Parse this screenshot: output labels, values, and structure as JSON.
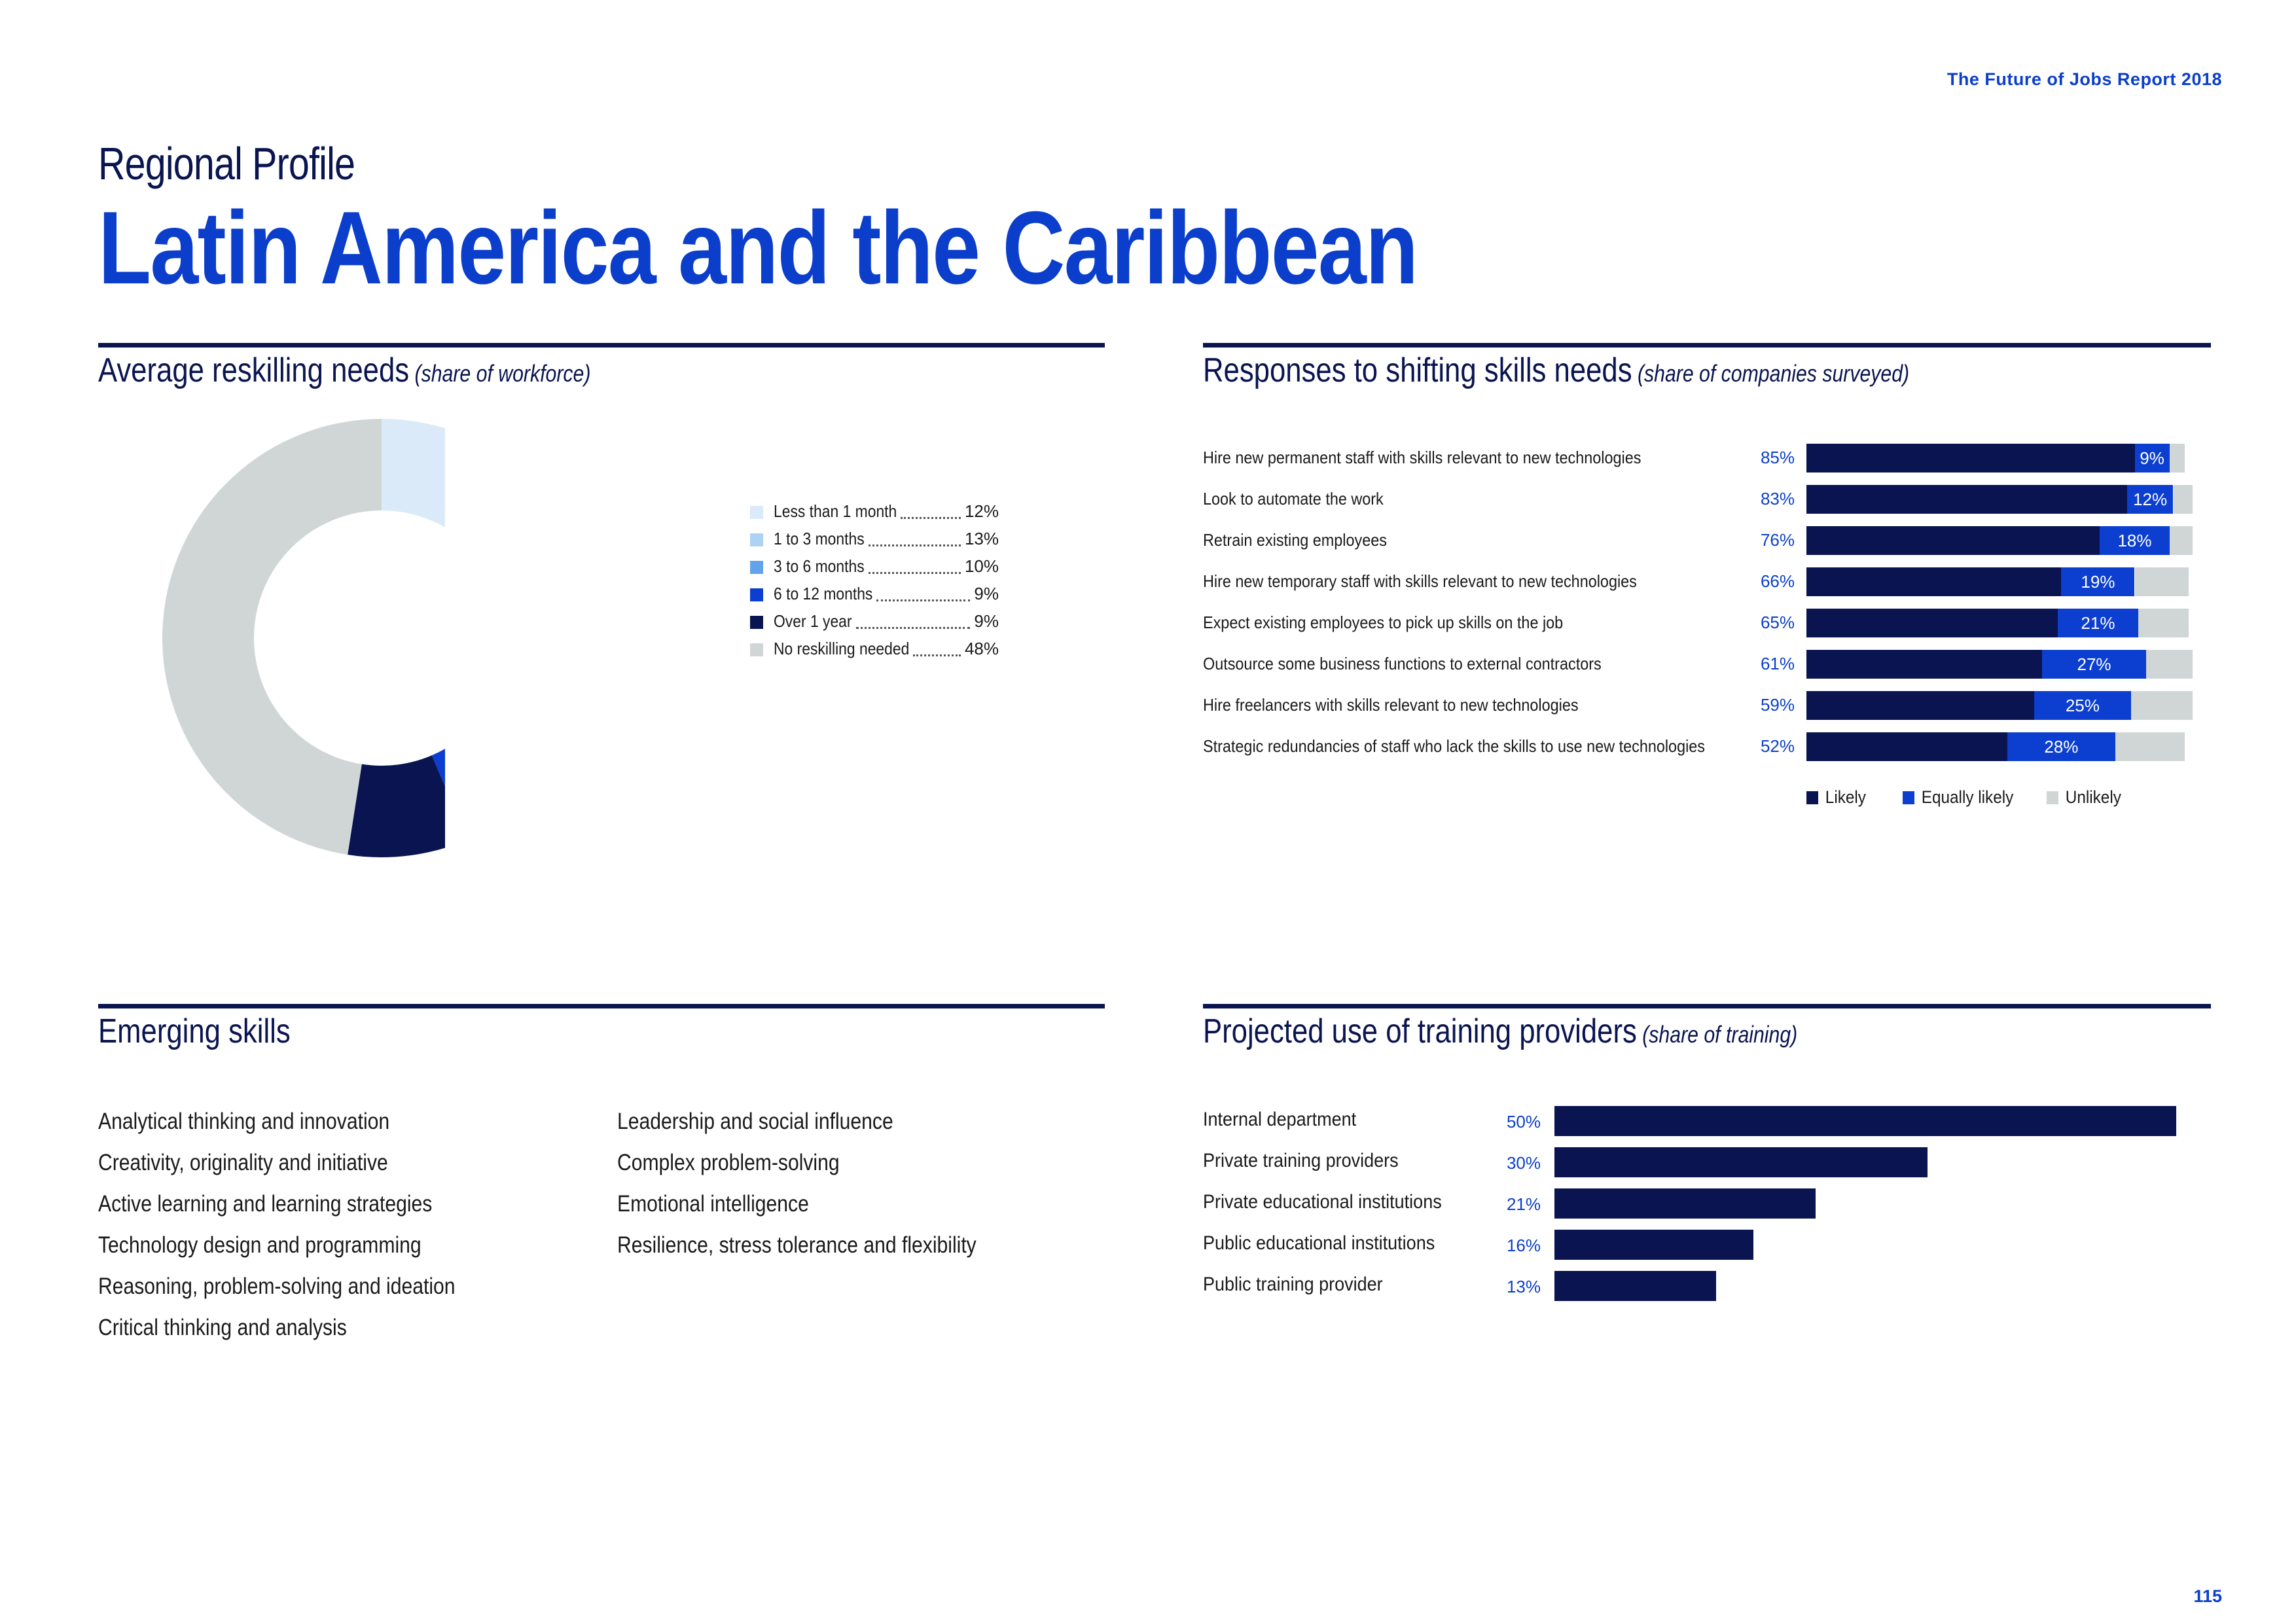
{
  "header": {
    "report_title": "The Future of Jobs Report 2018",
    "page_number": "115"
  },
  "titles": {
    "super": "Regional Profile",
    "main": "Latin America and the Caribbean"
  },
  "reskilling": {
    "title": "Average reskilling needs",
    "subtitle": "(share of workforce)",
    "legend": [
      {
        "label": "Less than 1 month",
        "value": "12%"
      },
      {
        "label": "1 to 3 months",
        "value": "13%"
      },
      {
        "label": "3 to 6 months",
        "value": "10%"
      },
      {
        "label": "6 to 12 months",
        "value": "9%"
      },
      {
        "label": "Over 1 year",
        "value": "9%"
      },
      {
        "label": "No reskilling needed",
        "value": "48%"
      }
    ]
  },
  "responses": {
    "title": "Responses to shifting skills needs",
    "subtitle": "(share of companies surveyed)",
    "rows": [
      {
        "label": "Hire new permanent staff with skills relevant to new technologies",
        "likely_label": "85%",
        "equally_label": "9%"
      },
      {
        "label": "Look to automate the work",
        "likely_label": "83%",
        "equally_label": "12%"
      },
      {
        "label": "Retrain existing employees",
        "likely_label": "76%",
        "equally_label": "18%"
      },
      {
        "label": "Hire new temporary staff with skills relevant to new technologies",
        "likely_label": "66%",
        "equally_label": "19%"
      },
      {
        "label": "Expect existing employees to pick up skills on the job",
        "likely_label": "65%",
        "equally_label": "21%"
      },
      {
        "label": "Outsource some business functions to external contractors",
        "likely_label": "61%",
        "equally_label": "27%"
      },
      {
        "label": "Hire freelancers with skills relevant to new technologies",
        "likely_label": "59%",
        "equally_label": "25%"
      },
      {
        "label": "Strategic redundancies of staff who lack the skills to use new technologies",
        "likely_label": "52%",
        "equally_label": "28%"
      }
    ],
    "legend": {
      "likely": "Likely",
      "equally": "Equally likely",
      "unlikely": "Unlikely"
    }
  },
  "emerging": {
    "title": "Emerging skills",
    "col1": [
      "Analytical thinking and innovation",
      "Creativity, originality and initiative",
      "Active learning and learning strategies",
      "Technology design and programming",
      "Reasoning, problem-solving and ideation",
      "Critical thinking and analysis"
    ],
    "col2": [
      "Leadership and social influence",
      "Complex problem-solving",
      "Emotional intelligence",
      "Resilience, stress tolerance and flexibility"
    ]
  },
  "training": {
    "title": "Projected use of training providers",
    "subtitle": "(share of training)",
    "rows": [
      {
        "label": "Internal department",
        "value_label": "50%"
      },
      {
        "label": "Private training providers",
        "value_label": "30%"
      },
      {
        "label": "Private educational institutions",
        "value_label": "21%"
      },
      {
        "label": "Public educational institutions",
        "value_label": "16%"
      },
      {
        "label": "Public training provider",
        "value_label": "13%"
      }
    ]
  },
  "colors": {
    "brand_blue": "#0b3fcb",
    "navy": "#0a1450",
    "grey": "#d0d6d6",
    "donut": [
      "#dbeaf8",
      "#acd2f4",
      "#63a3ec",
      "#0c3fd0",
      "#0a1450",
      "#d0d6d6"
    ]
  },
  "chart_data": [
    {
      "type": "pie",
      "title": "Average reskilling needs",
      "subtitle": "(share of workforce)",
      "categories": [
        "Less than 1 month",
        "1 to 3 months",
        "3 to 6 months",
        "6 to 12 months",
        "Over 1 year",
        "No reskilling needed"
      ],
      "values": [
        12,
        13,
        10,
        9,
        9,
        48
      ],
      "legend": "right"
    },
    {
      "type": "bar",
      "stacked": true,
      "orientation": "horizontal",
      "title": "Responses to shifting skills needs",
      "subtitle": "(share of companies surveyed)",
      "categories": [
        "Hire new permanent staff with skills relevant to new technologies",
        "Look to automate the work",
        "Retrain existing employees",
        "Hire new temporary staff with skills relevant to new technologies",
        "Expect existing employees to pick up skills on the job",
        "Outsource some business functions to external contractors",
        "Hire freelancers with skills relevant to new technologies",
        "Strategic redundancies of staff who lack the skills to use new technologies"
      ],
      "series": [
        {
          "name": "Likely",
          "values": [
            85,
            83,
            76,
            66,
            65,
            61,
            59,
            52
          ]
        },
        {
          "name": "Equally likely",
          "values": [
            9,
            12,
            18,
            19,
            21,
            27,
            25,
            28
          ]
        },
        {
          "name": "Unlikely",
          "values": [
            4,
            5,
            6,
            14,
            13,
            12,
            16,
            18
          ]
        }
      ],
      "legend": "bottom"
    },
    {
      "type": "bar",
      "orientation": "horizontal",
      "title": "Projected use of training providers",
      "subtitle": "(share of training)",
      "categories": [
        "Internal department",
        "Private training providers",
        "Private educational institutions",
        "Public educational institutions",
        "Public training provider"
      ],
      "values": [
        50,
        30,
        21,
        16,
        13
      ]
    }
  ]
}
